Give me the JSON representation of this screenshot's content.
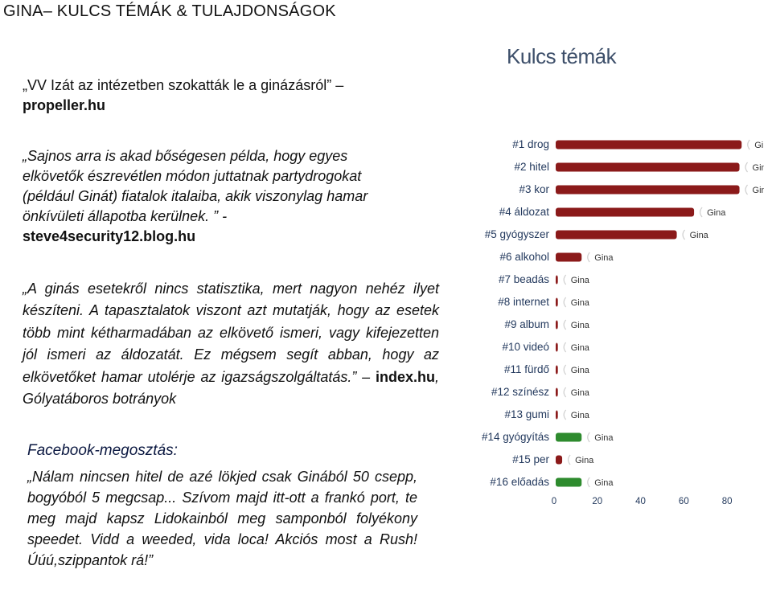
{
  "page": {
    "title": "GINA– KULCS TÉMÁK & TULAJDONSÁGOK"
  },
  "quote1": {
    "text": "„VV Izát az intézetben szokatták le a ginázásról” –",
    "source": "propeller.hu"
  },
  "quote2": {
    "text": "„Sajnos arra is akad bőségesen példa, hogy egyes elkövetők észrevétlen módon juttatnak partydrogokat (például Ginát) fiatalok italaiba, akik viszonylag hamar önkívületi állapotba kerülnek. ” -",
    "source": "steve4security12.blog.hu"
  },
  "quote3": {
    "text": "„A ginás esetekről nincs statisztika, mert nagyon nehéz ilyet készíteni. A tapasztalatok viszont azt mutatják, hogy az esetek több mint kétharmadában az elkövető ismeri, vagy kifejezetten jól ismeri az áldozatát. Ez mégsem segít abban, hogy az elkövetőket hamar utolérje az igazságszolgáltatás.” –",
    "source": "index.hu",
    "source_suffix": ", Gólyatáboros botrányok"
  },
  "facebook": {
    "heading": "Facebook-megosztás:",
    "text": "„Nálam nincsen hitel de azé lökjed csak Ginából 50 csepp, bogyóból 5 megcsap... Szívom majd itt-ott a frankó port, te meg majd kapsz Lidokainból meg samponból folyékony speedet. Vidd a weeded, vida loca! Akciós most a Rush!",
    "last_line": "Úúú,szippantok rá!”"
  },
  "chart_data": {
    "type": "bar",
    "orientation": "horizontal",
    "title": "Kulcs témák",
    "categories": [
      "#1 drog",
      "#2 hitel",
      "#3 kor",
      "#4 áldozat",
      "#5 gyógyszer",
      "#6 alkohol",
      "#7 beadás",
      "#8 internet",
      "#9 album",
      "#10 videó",
      "#11 fürdő",
      "#12 színész",
      "#13 gumi",
      "#14 gyógyítás",
      "#15 per",
      "#16 előadás"
    ],
    "values": [
      86,
      85,
      85,
      64,
      56,
      12,
      1,
      1,
      1,
      1,
      1,
      1,
      1,
      12,
      3,
      12
    ],
    "bar_colors": [
      "#8b1a1a",
      "#8b1a1a",
      "#8b1a1a",
      "#8b1a1a",
      "#8b1a1a",
      "#8b1a1a",
      "#8b1a1a",
      "#8b1a1a",
      "#8b1a1a",
      "#8b1a1a",
      "#8b1a1a",
      "#8b1a1a",
      "#8b1a1a",
      "#2e8b2e",
      "#8b1a1a",
      "#2e8b2e"
    ],
    "bar_label": "Gina",
    "xticks": [
      0,
      20,
      40,
      60,
      80
    ],
    "xlim": [
      0,
      90
    ]
  }
}
